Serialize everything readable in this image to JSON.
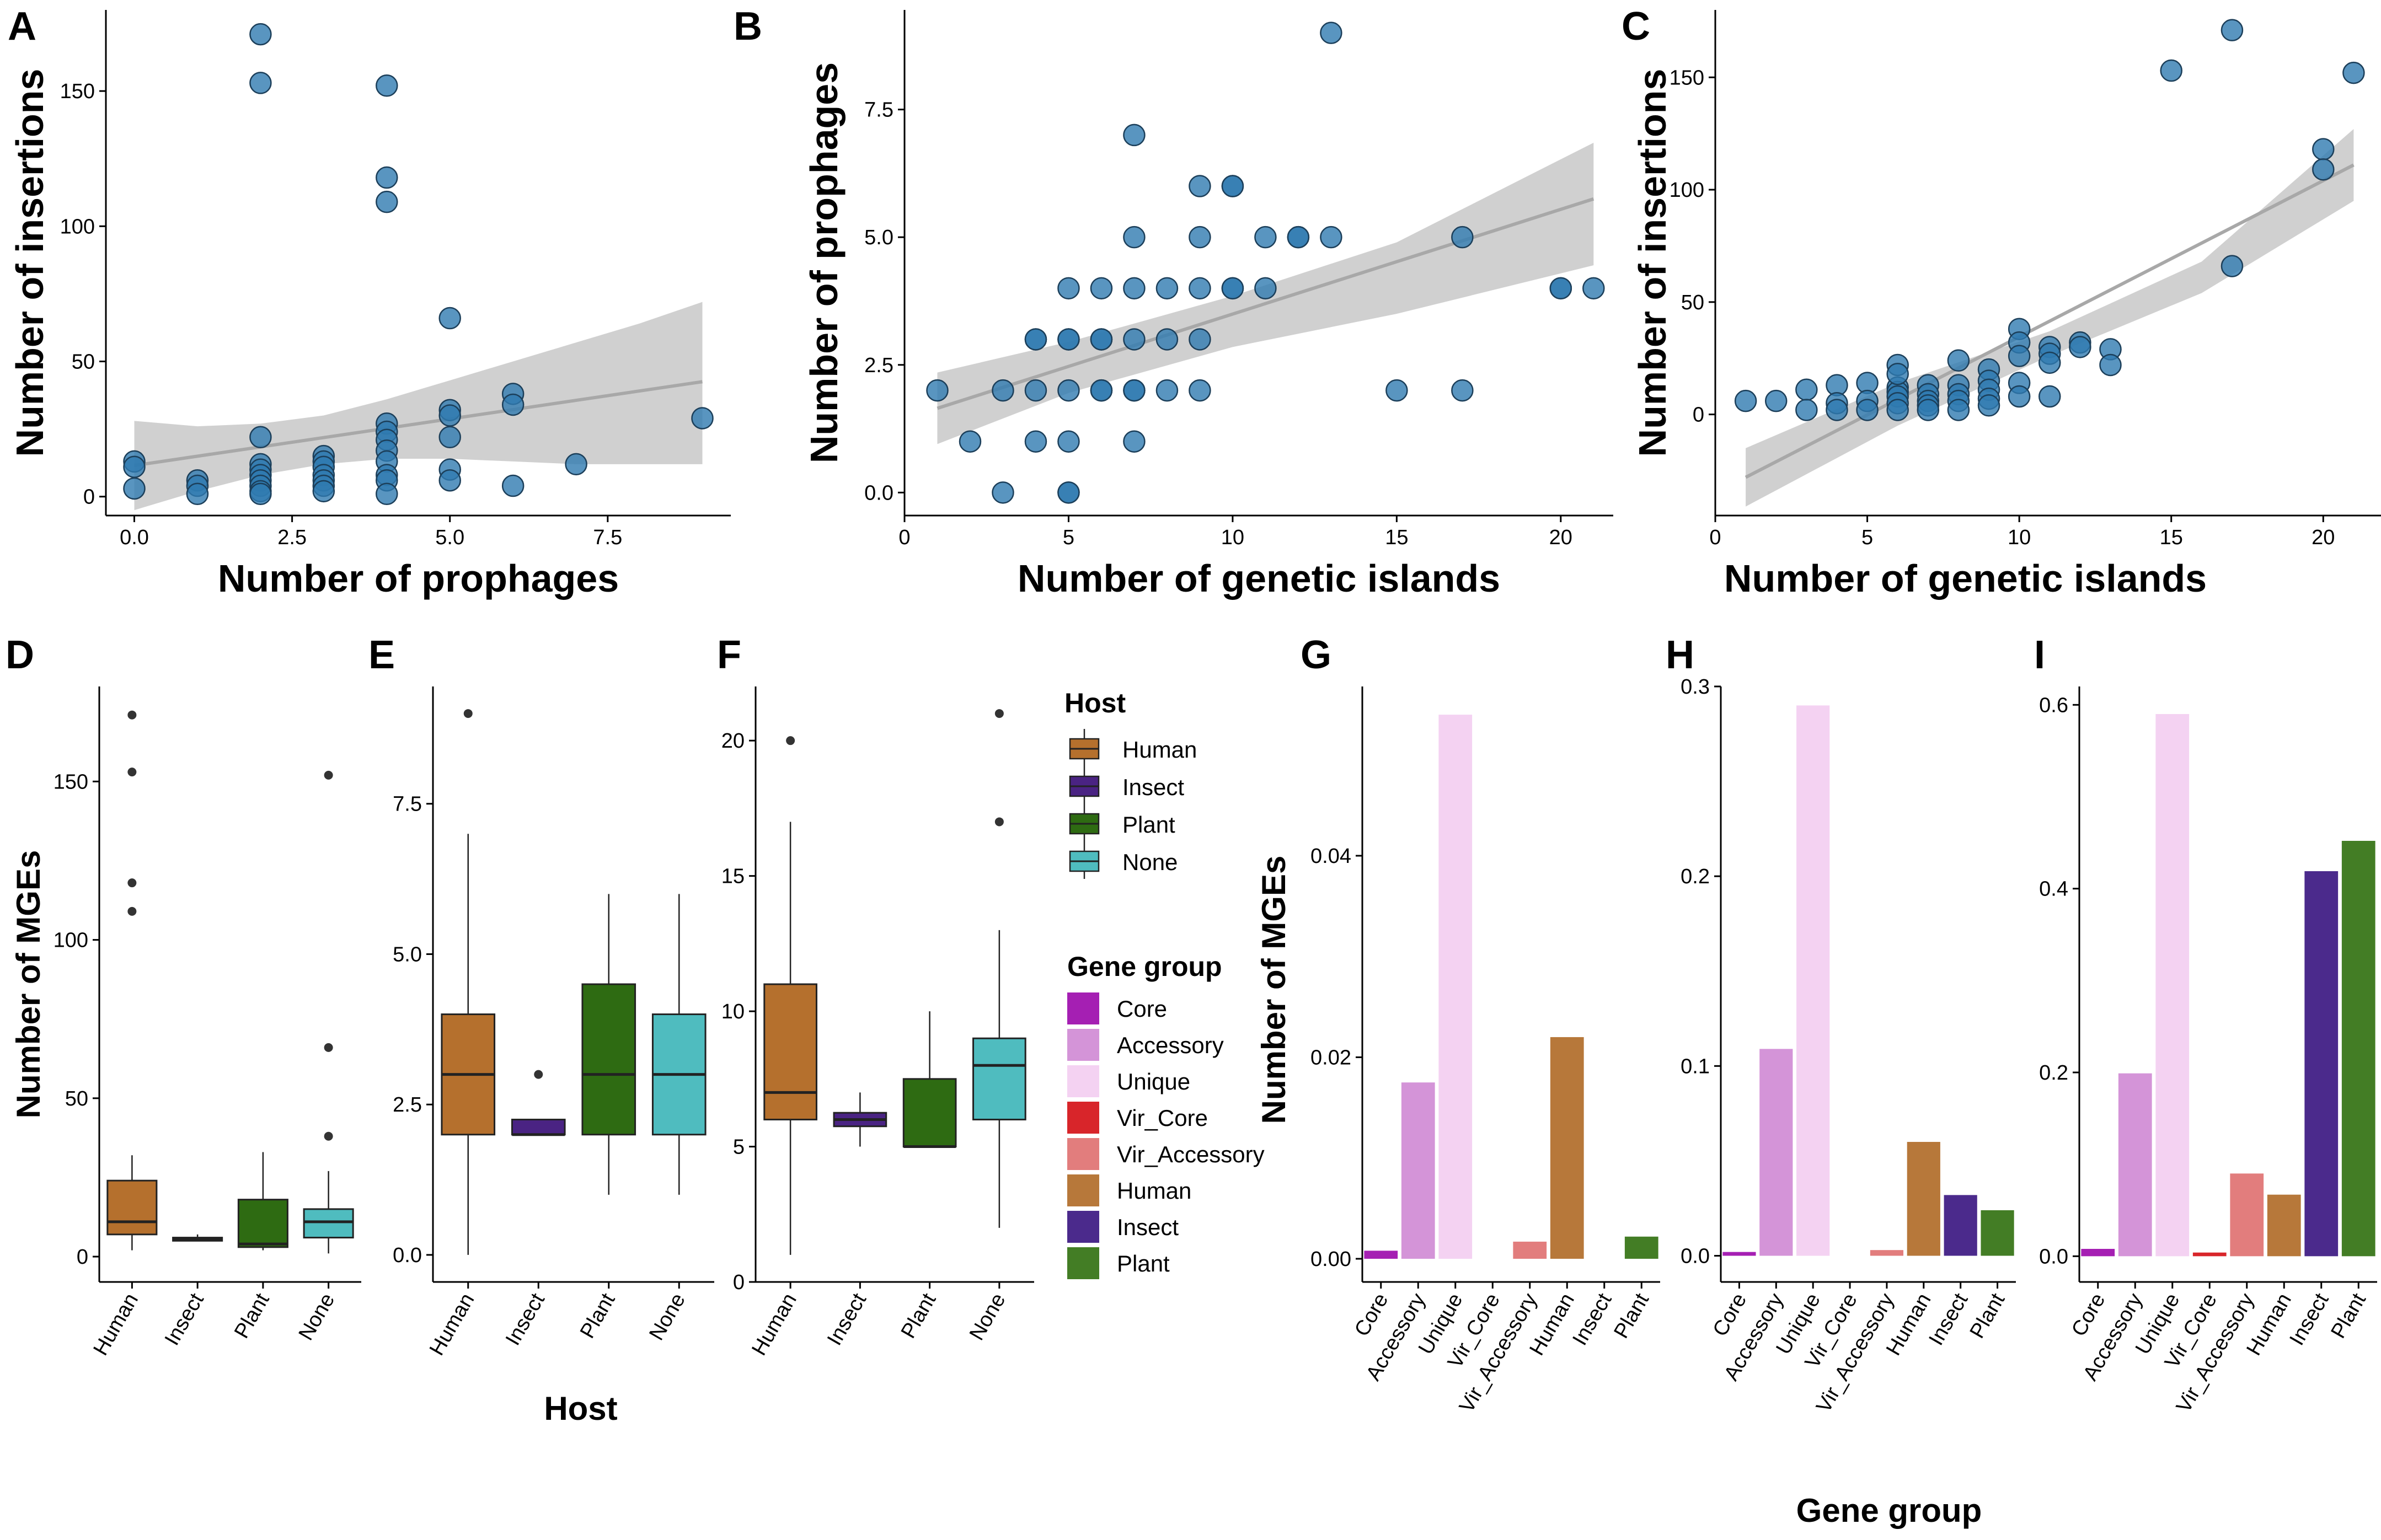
{
  "colors": {
    "point": "#2f7bb0",
    "Human": "#b5702d",
    "Insect": "#4a2383",
    "Plant": "#2e6b12",
    "None": "#4fbcbf",
    "Core": "#a51fb3",
    "Accessory": "#d494d8",
    "Unique": "#f4d2f2",
    "Vir_Core": "#d8252a",
    "Vir_Accessory": "#e27d7d",
    "Human_bar": "#b7783a",
    "Insect_bar": "#4b2a8c",
    "Plant_bar": "#437d25"
  },
  "chart_data": [
    {
      "panel": "A",
      "type": "scatter",
      "xlabel": "Number of prophages",
      "ylabel": "Number of insertions",
      "xlim": [
        -0.45,
        9.45
      ],
      "ylim": [
        -7,
        180
      ],
      "xticks": [
        0.0,
        2.5,
        5.0,
        7.5
      ],
      "xtick_labels": [
        "0.0",
        "2.5",
        "5.0",
        "7.5"
      ],
      "yticks": [
        0,
        50,
        100,
        150
      ],
      "ytick_labels": [
        "0",
        "50",
        "100",
        "150"
      ],
      "fit": {
        "x": [
          0,
          9
        ],
        "y": [
          11.5,
          42.5
        ]
      },
      "band": {
        "x": [
          0,
          1,
          2,
          3,
          4,
          5,
          6,
          7,
          8,
          9
        ],
        "lower": [
          -5,
          2,
          8,
          12,
          14,
          14,
          13,
          12,
          12,
          12
        ],
        "upper": [
          28,
          26,
          27,
          30,
          36,
          43,
          50,
          57,
          64,
          72
        ]
      },
      "points": [
        [
          0,
          13
        ],
        [
          0,
          11
        ],
        [
          0,
          3
        ],
        [
          1,
          6
        ],
        [
          1,
          4
        ],
        [
          1,
          1
        ],
        [
          2,
          171
        ],
        [
          2,
          153
        ],
        [
          2,
          22
        ],
        [
          2,
          12
        ],
        [
          2,
          10
        ],
        [
          2,
          8
        ],
        [
          2,
          6
        ],
        [
          2,
          4
        ],
        [
          2,
          2
        ],
        [
          2,
          1
        ],
        [
          3,
          15
        ],
        [
          3,
          13
        ],
        [
          3,
          11
        ],
        [
          3,
          8
        ],
        [
          3,
          6
        ],
        [
          3,
          4
        ],
        [
          3,
          2
        ],
        [
          4,
          152
        ],
        [
          4,
          118
        ],
        [
          4,
          109
        ],
        [
          4,
          27
        ],
        [
          4,
          24
        ],
        [
          4,
          21
        ],
        [
          4,
          17
        ],
        [
          4,
          13
        ],
        [
          4,
          8
        ],
        [
          4,
          6
        ],
        [
          4,
          1
        ],
        [
          5,
          66
        ],
        [
          5,
          32
        ],
        [
          5,
          30
        ],
        [
          5,
          22
        ],
        [
          5,
          10
        ],
        [
          5,
          6
        ],
        [
          6,
          38
        ],
        [
          6,
          34
        ],
        [
          6,
          4
        ],
        [
          7,
          12
        ],
        [
          9,
          29
        ]
      ]
    },
    {
      "panel": "B",
      "type": "scatter",
      "xlabel": "Number of genetic islands",
      "ylabel": "Number of prophages",
      "xlim": [
        0,
        21.6
      ],
      "ylim": [
        -0.45,
        9.45
      ],
      "xticks": [
        0,
        5,
        10,
        15,
        20
      ],
      "xtick_labels": [
        "0",
        "5",
        "10",
        "15",
        "20"
      ],
      "yticks": [
        0.0,
        2.5,
        5.0,
        7.5
      ],
      "ytick_labels": [
        "0.0",
        "2.5",
        "5.0",
        "7.5"
      ],
      "fit": {
        "x": [
          1,
          21
        ],
        "y": [
          1.65,
          5.75
        ]
      },
      "band": {
        "x": [
          1,
          5,
          10,
          15,
          21
        ],
        "lower": [
          0.95,
          1.95,
          2.85,
          3.5,
          4.45
        ],
        "upper": [
          2.35,
          2.95,
          3.85,
          4.9,
          6.85
        ]
      },
      "points": [
        [
          1,
          2
        ],
        [
          2,
          1
        ],
        [
          3,
          0
        ],
        [
          3,
          2
        ],
        [
          4,
          1
        ],
        [
          4,
          2
        ],
        [
          4,
          3
        ],
        [
          4,
          3
        ],
        [
          5,
          0
        ],
        [
          5,
          0
        ],
        [
          5,
          1
        ],
        [
          5,
          2
        ],
        [
          5,
          3
        ],
        [
          5,
          3
        ],
        [
          5,
          4
        ],
        [
          6,
          2
        ],
        [
          6,
          2
        ],
        [
          6,
          3
        ],
        [
          6,
          3
        ],
        [
          6,
          4
        ],
        [
          7,
          1
        ],
        [
          7,
          2
        ],
        [
          7,
          2
        ],
        [
          7,
          3
        ],
        [
          7,
          4
        ],
        [
          7,
          5
        ],
        [
          7,
          7
        ],
        [
          8,
          2
        ],
        [
          8,
          3
        ],
        [
          8,
          4
        ],
        [
          9,
          2
        ],
        [
          9,
          3
        ],
        [
          9,
          4
        ],
        [
          9,
          5
        ],
        [
          9,
          6
        ],
        [
          10,
          4
        ],
        [
          10,
          4
        ],
        [
          10,
          6
        ],
        [
          10,
          6
        ],
        [
          11,
          4
        ],
        [
          11,
          5
        ],
        [
          12,
          5
        ],
        [
          12,
          5
        ],
        [
          13,
          5
        ],
        [
          13,
          9
        ],
        [
          15,
          2
        ],
        [
          17,
          2
        ],
        [
          17,
          5
        ],
        [
          20,
          4
        ],
        [
          20,
          4
        ],
        [
          21,
          4
        ]
      ]
    },
    {
      "panel": "C",
      "type": "scatter",
      "xlabel": "Number of genetic islands",
      "ylabel": "Number of insertions",
      "xlim": [
        0,
        21.9
      ],
      "ylim": [
        -45,
        180
      ],
      "xticks": [
        0,
        5,
        10,
        15,
        20
      ],
      "xtick_labels": [
        "0",
        "5",
        "10",
        "15",
        "20"
      ],
      "yticks": [
        0,
        50,
        100,
        150
      ],
      "ytick_labels": [
        "0",
        "50",
        "100",
        "150"
      ],
      "fit": {
        "x": [
          1,
          21
        ],
        "y": [
          -28,
          111
        ]
      },
      "band": {
        "x": [
          1,
          6,
          11,
          16,
          21
        ],
        "lower": [
          -41,
          -5,
          26,
          54,
          95
        ],
        "upper": [
          -15,
          14,
          37,
          68,
          127
        ]
      },
      "points": [
        [
          1,
          6
        ],
        [
          2,
          6
        ],
        [
          3,
          11
        ],
        [
          3,
          2
        ],
        [
          4,
          13
        ],
        [
          4,
          5
        ],
        [
          4,
          2
        ],
        [
          5,
          14
        ],
        [
          5,
          6
        ],
        [
          5,
          2
        ],
        [
          6,
          12
        ],
        [
          6,
          10
        ],
        [
          6,
          8
        ],
        [
          6,
          5
        ],
        [
          6,
          2
        ],
        [
          6,
          22
        ],
        [
          6,
          18
        ],
        [
          7,
          13
        ],
        [
          7,
          9
        ],
        [
          7,
          6
        ],
        [
          7,
          4
        ],
        [
          7,
          2
        ],
        [
          8,
          24
        ],
        [
          8,
          13
        ],
        [
          8,
          9
        ],
        [
          8,
          6
        ],
        [
          8,
          2
        ],
        [
          9,
          20
        ],
        [
          9,
          15
        ],
        [
          9,
          11
        ],
        [
          9,
          7
        ],
        [
          9,
          4
        ],
        [
          10,
          38
        ],
        [
          10,
          32
        ],
        [
          10,
          26
        ],
        [
          10,
          14
        ],
        [
          10,
          8
        ],
        [
          11,
          30
        ],
        [
          11,
          27
        ],
        [
          11,
          23
        ],
        [
          11,
          8
        ],
        [
          12,
          32
        ],
        [
          12,
          30
        ],
        [
          13,
          29
        ],
        [
          13,
          22
        ],
        [
          15,
          153
        ],
        [
          17,
          171
        ],
        [
          17,
          66
        ],
        [
          20,
          118
        ],
        [
          20,
          109
        ],
        [
          21,
          152
        ]
      ]
    },
    {
      "panel": "D",
      "type": "box",
      "categories": [
        "Human",
        "Insect",
        "Plant",
        "None"
      ],
      "ylabel": "Number of MGEs",
      "ylim": [
        -8,
        180
      ],
      "yticks": [
        0,
        50,
        100,
        150
      ],
      "ytick_labels": [
        "0",
        "50",
        "100",
        "150"
      ],
      "boxes": [
        {
          "q1": 7,
          "median": 11,
          "q3": 24,
          "lo": 2,
          "hi": 32,
          "outliers": [
            171,
            153,
            118,
            109
          ]
        },
        {
          "q1": 5,
          "median": 5.5,
          "q3": 6,
          "lo": 5,
          "hi": 7,
          "outliers": []
        },
        {
          "q1": 3,
          "median": 4,
          "q3": 18,
          "lo": 2,
          "hi": 33,
          "outliers": []
        },
        {
          "q1": 6,
          "median": 11,
          "q3": 15,
          "lo": 1,
          "hi": 27,
          "outliers": [
            152,
            66,
            38
          ]
        }
      ]
    },
    {
      "panel": "E",
      "type": "box",
      "categories": [
        "Human",
        "Insect",
        "Plant",
        "None"
      ],
      "xlabel": "Host",
      "ylim": [
        -0.45,
        9.45
      ],
      "yticks": [
        0.0,
        2.5,
        5.0,
        7.5
      ],
      "ytick_labels": [
        "0.0",
        "2.5",
        "5.0",
        "7.5"
      ],
      "boxes": [
        {
          "q1": 2,
          "median": 3,
          "q3": 4,
          "lo": 0,
          "hi": 7,
          "outliers": [
            9
          ]
        },
        {
          "q1": 2,
          "median": 2,
          "q3": 2.25,
          "lo": 2,
          "hi": 2.25,
          "outliers": [
            3
          ]
        },
        {
          "q1": 2,
          "median": 3,
          "q3": 4.5,
          "lo": 1,
          "hi": 6,
          "outliers": []
        },
        {
          "q1": 2,
          "median": 3,
          "q3": 4,
          "lo": 1,
          "hi": 6,
          "outliers": []
        }
      ]
    },
    {
      "panel": "F",
      "type": "box",
      "categories": [
        "Human",
        "Insect",
        "Plant",
        "None"
      ],
      "ylim": [
        0,
        22
      ],
      "yticks": [
        0,
        5,
        10,
        15,
        20
      ],
      "ytick_labels": [
        "0",
        "5",
        "10",
        "15",
        "20"
      ],
      "boxes": [
        {
          "q1": 6,
          "median": 7,
          "q3": 11,
          "lo": 1,
          "hi": 17,
          "outliers": [
            20
          ]
        },
        {
          "q1": 5.75,
          "median": 6,
          "q3": 6.25,
          "lo": 5,
          "hi": 7,
          "outliers": []
        },
        {
          "q1": 5,
          "median": 5,
          "q3": 7.5,
          "lo": 5,
          "hi": 10,
          "outliers": []
        },
        {
          "q1": 6,
          "median": 8,
          "q3": 9,
          "lo": 2,
          "hi": 13,
          "outliers": [
            21,
            17
          ]
        }
      ]
    },
    {
      "panel": "G",
      "type": "bar",
      "categories": [
        "Core",
        "Accessory",
        "Unique",
        "Vir_Core",
        "Vir_Accessory",
        "Human",
        "Insect",
        "Plant"
      ],
      "ylabel": "Number of MGEs",
      "ylim": [
        -0.0023,
        0.0568
      ],
      "yticks": [
        0,
        0.02,
        0.04
      ],
      "ytick_labels": [
        "0.00",
        "0.02",
        "0.04"
      ],
      "values": [
        0.0008,
        0.0175,
        0.054,
        0,
        0.0017,
        0.022,
        0,
        0.0022
      ]
    },
    {
      "panel": "H",
      "type": "bar",
      "categories": [
        "Core",
        "Accessory",
        "Unique",
        "Vir_Core",
        "Vir_Accessory",
        "Human",
        "Insect",
        "Plant"
      ],
      "xlabel": "Gene group",
      "ylim": [
        -0.0138,
        0.3
      ],
      "yticks": [
        0,
        0.1,
        0.2,
        0.3
      ],
      "ytick_labels": [
        "0.0",
        "0.1",
        "0.2",
        "0.3"
      ],
      "values": [
        0.002,
        0.109,
        0.29,
        0,
        0.003,
        0.06,
        0.032,
        0.024
      ]
    },
    {
      "panel": "I",
      "type": "bar",
      "categories": [
        "Core",
        "Accessory",
        "Unique",
        "Vir_Core",
        "Vir_Accessory",
        "Human",
        "Insect",
        "Plant"
      ],
      "ylim": [
        -0.028,
        0.62
      ],
      "yticks": [
        0,
        0.2,
        0.4,
        0.6
      ],
      "ytick_labels": [
        "0.0",
        "0.2",
        "0.4",
        "0.6"
      ],
      "values": [
        0.008,
        0.199,
        0.59,
        0.004,
        0.09,
        0.067,
        0.419,
        0.452
      ]
    }
  ],
  "legend": {
    "host_title": "Host",
    "host_items": [
      "Human",
      "Insect",
      "Plant",
      "None"
    ],
    "gene_title": "Gene group",
    "gene_items": [
      "Core",
      "Accessory",
      "Unique",
      "Vir_Core",
      "Vir_Accessory",
      "Human",
      "Insect",
      "Plant"
    ]
  }
}
